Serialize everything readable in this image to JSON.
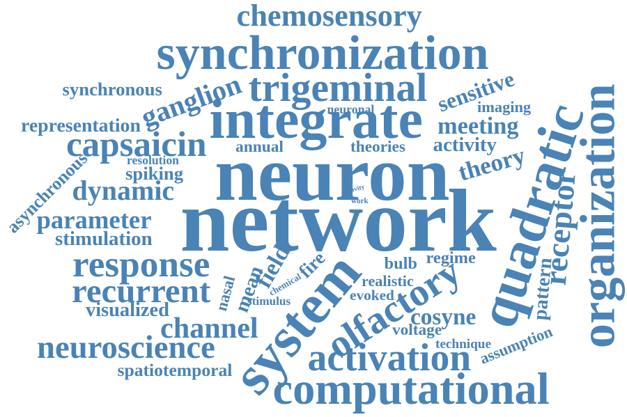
{
  "color": "#4a83b5",
  "words": [
    "chemosensory",
    "synchronization",
    "trigeminal",
    "synchronous",
    "ganglion",
    "sensitive",
    "imaging",
    "neuronal",
    "integrate",
    "meeting",
    "representation",
    "capsaicin",
    "annual",
    "theories",
    "activity",
    "quadratic",
    "organization",
    "resolution",
    "neuron",
    "theory",
    "asynchronous",
    "spiking",
    "receptor",
    "dynamic",
    "cavity",
    "work",
    "network",
    "parameter",
    "stimulation",
    "response",
    "field",
    "fire",
    "mean",
    "nasal",
    "bulb",
    "regime",
    "recurrent",
    "chemical",
    "realistic",
    "pattern",
    "stimulus",
    "system",
    "visualized",
    "evoked",
    "olfactory",
    "channel",
    "cosyne",
    "voltage",
    "neuroscience",
    "technique",
    "assumption",
    "activation",
    "spatiotemporal",
    "computational"
  ]
}
